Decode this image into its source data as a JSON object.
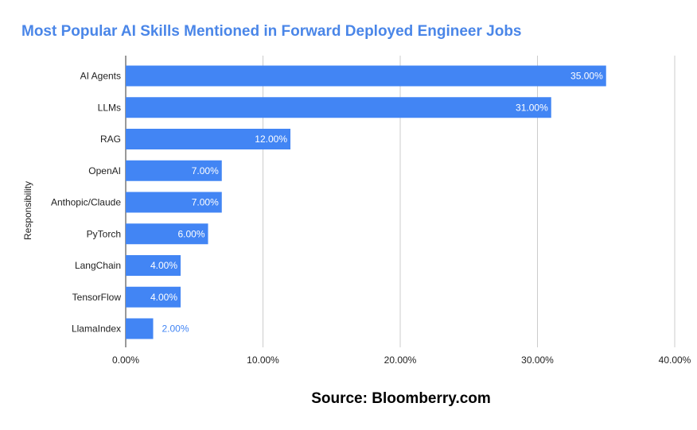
{
  "chart_data": {
    "type": "bar",
    "orientation": "horizontal",
    "title": "Most Popular AI Skills Mentioned in Forward Deployed Engineer Jobs",
    "ylabel": "Responsibility",
    "xlabel": "",
    "categories": [
      "AI Agents",
      "LLMs",
      "RAG",
      "OpenAI",
      "Anthopic/Claude",
      "PyTorch",
      "LangChain",
      "TensorFlow",
      "LlamaIndex"
    ],
    "values": [
      35,
      31,
      12,
      7,
      7,
      6,
      4,
      4,
      2
    ],
    "value_labels": [
      "35.00%",
      "31.00%",
      "12.00%",
      "7.00%",
      "7.00%",
      "6.00%",
      "4.00%",
      "4.00%",
      "2.00%"
    ],
    "xlim": [
      0,
      40
    ],
    "x_ticks": [
      0,
      10,
      20,
      30,
      40
    ],
    "x_tick_labels": [
      "0.00%",
      "10.00%",
      "20.00%",
      "30.00%",
      "40.00%"
    ],
    "grid": "vertical",
    "legend": "none",
    "bar_color": "#4285f4",
    "title_color": "#4a86e8",
    "inside_label_color": "#ffffff",
    "outside_label_color": "#4285f4"
  },
  "source": "Source: Bloomberry.com"
}
